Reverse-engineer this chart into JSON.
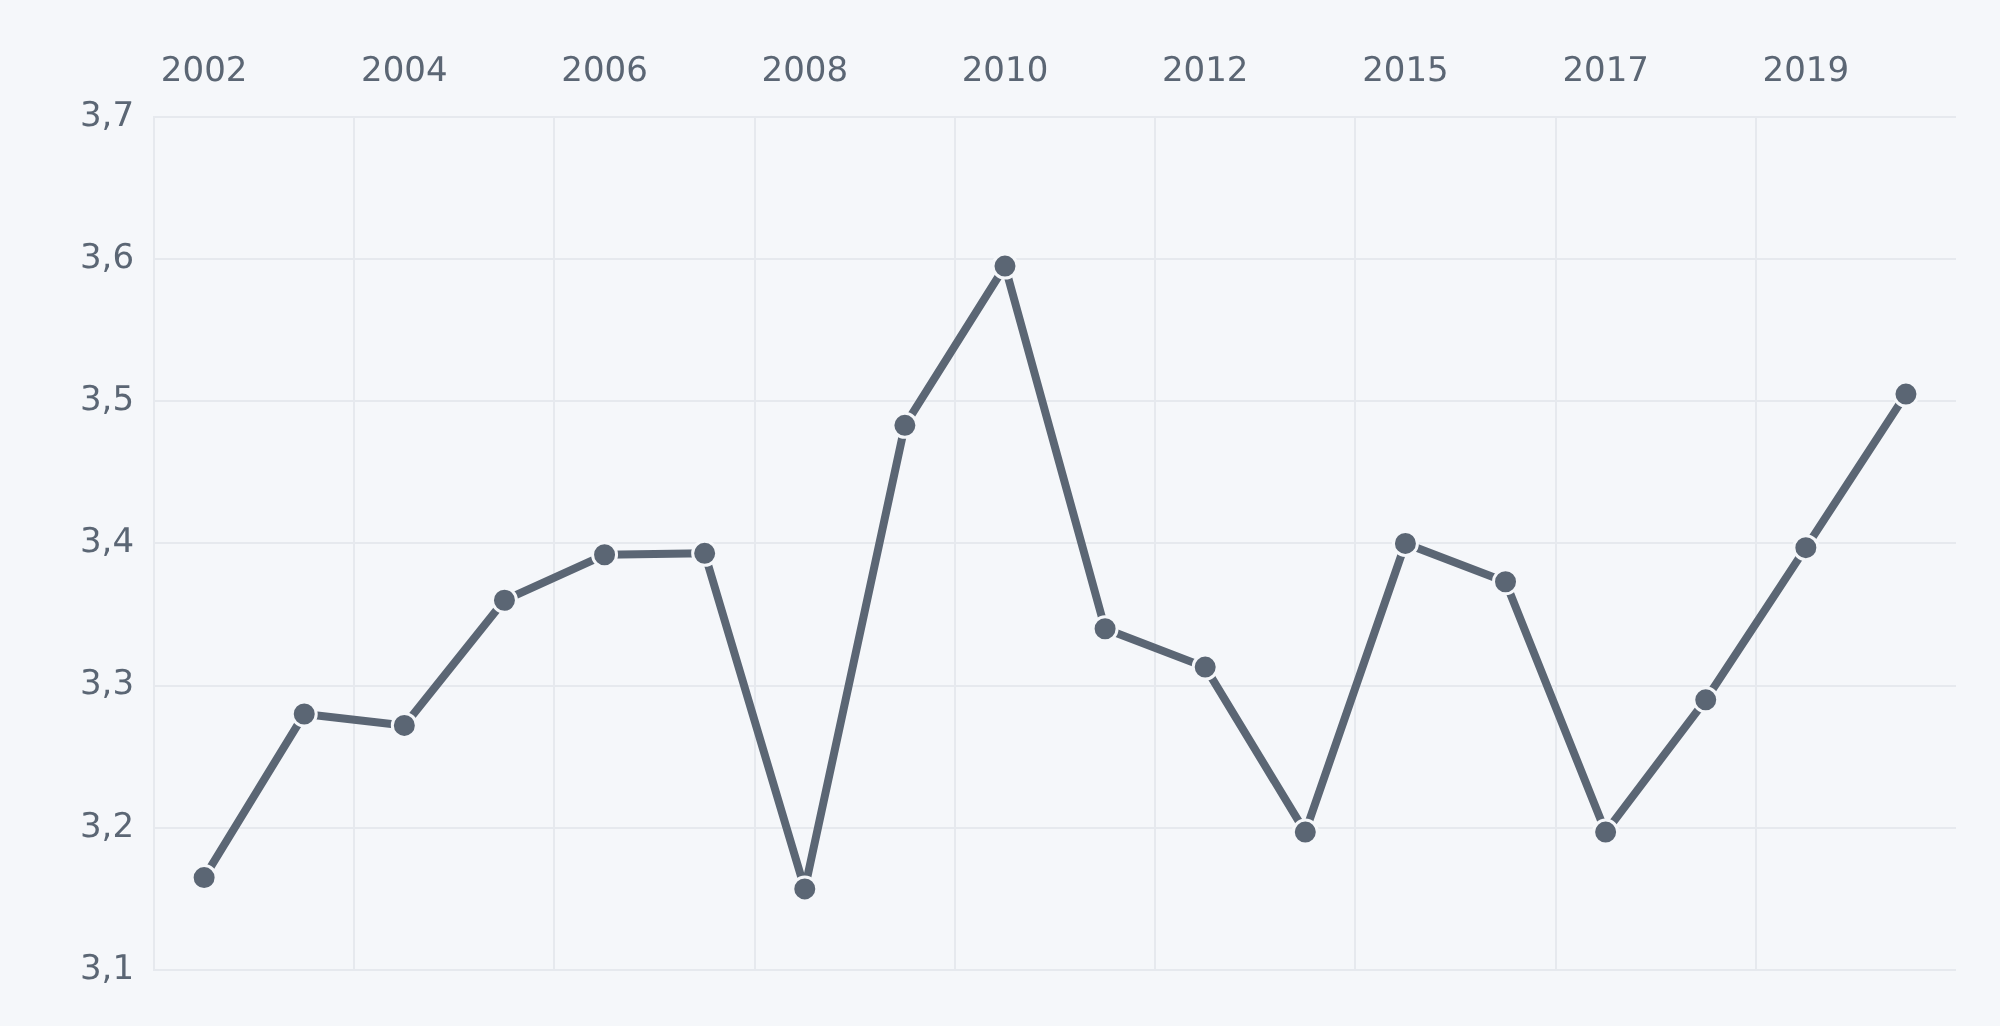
{
  "chart_data": {
    "type": "line",
    "categories": [
      "2002",
      null,
      "2004",
      null,
      "2006",
      null,
      "2008",
      null,
      "2010",
      null,
      "2012",
      null,
      "2015",
      null,
      "2017",
      null,
      "2019",
      null
    ],
    "series": [
      {
        "color": "#5b6674",
        "values": [
          3.165,
          3.28,
          3.272,
          3.36,
          3.392,
          3.393,
          3.157,
          3.483,
          3.595,
          3.34,
          3.313,
          3.197,
          3.4,
          3.373,
          3.197,
          3.29,
          3.397,
          3.505
        ]
      }
    ],
    "ylim": [
      3.1,
      3.7
    ],
    "yticks": [
      {
        "value": 3.1,
        "label": "3,1"
      },
      {
        "value": 3.2,
        "label": "3,2"
      },
      {
        "value": 3.3,
        "label": "3,3"
      },
      {
        "value": 3.4,
        "label": "3,4"
      },
      {
        "value": 3.5,
        "label": "3,5"
      },
      {
        "value": 3.6,
        "label": "3,6"
      },
      {
        "value": 3.7,
        "label": "3,7"
      }
    ],
    "grid": true,
    "marker": "circle",
    "line_style": "solid",
    "legend": false
  }
}
